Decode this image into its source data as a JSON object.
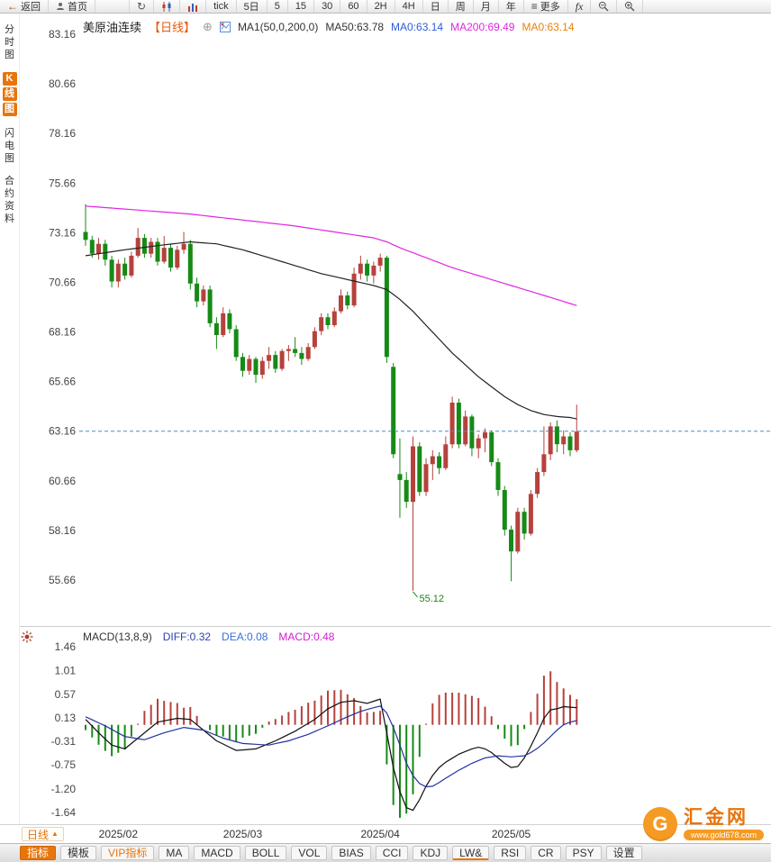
{
  "toolbar": {
    "items": [
      {
        "name": "back-button",
        "icon": "back-arrow",
        "label": "返回"
      },
      {
        "name": "home-button",
        "icon": "person",
        "label": "首页"
      },
      {
        "name": "refresh-button",
        "icon": "refresh",
        "label": ""
      },
      {
        "name": "kline-chart-button",
        "icon": "kline",
        "label": ""
      },
      {
        "name": "timeshare-chart-button",
        "icon": "bars",
        "label": ""
      },
      {
        "name": "tick-button",
        "icon": null,
        "label": "tick"
      },
      {
        "name": "period-5day-button",
        "icon": null,
        "label": "5日"
      },
      {
        "name": "period-5min-button",
        "icon": null,
        "label": "5"
      },
      {
        "name": "period-15min-button",
        "icon": null,
        "label": "15"
      },
      {
        "name": "period-30min-button",
        "icon": null,
        "label": "30"
      },
      {
        "name": "period-60min-button",
        "icon": null,
        "label": "60"
      },
      {
        "name": "period-2h-button",
        "icon": null,
        "label": "2H"
      },
      {
        "name": "period-4h-button",
        "icon": null,
        "label": "4H"
      },
      {
        "name": "period-day-button",
        "icon": null,
        "label": "日"
      },
      {
        "name": "period-week-button",
        "icon": null,
        "label": "周"
      },
      {
        "name": "period-month-button",
        "icon": null,
        "label": "月"
      },
      {
        "name": "period-year-button",
        "icon": null,
        "label": "年"
      },
      {
        "name": "more-button",
        "icon": "menu",
        "label": "更多"
      },
      {
        "name": "fx-button",
        "icon": "fx",
        "label": ""
      },
      {
        "name": "zoom-out-button",
        "icon": "zoom-out",
        "label": ""
      },
      {
        "name": "zoom-in-button",
        "icon": "zoom-in",
        "label": ""
      }
    ]
  },
  "sidebar": {
    "items": [
      {
        "name": "sidebar-item-timeshare",
        "label": "分时图",
        "active": false
      },
      {
        "name": "sidebar-item-kline",
        "label": "K线图",
        "active": true
      },
      {
        "name": "sidebar-item-lightning",
        "label": "闪电图",
        "active": false
      },
      {
        "name": "sidebar-item-contract-info",
        "label": "合约资料",
        "active": false
      }
    ]
  },
  "chart_header": {
    "symbol": "美原油连续",
    "period_tag": "【日线】",
    "period_tag_color": "#e8590c",
    "ma_settings": "MA1(50,0,200,0)",
    "ma_values": [
      {
        "label": "MA50:63.78",
        "color": "#333333"
      },
      {
        "label": "MA0:63.14",
        "color": "#2f5bd8"
      },
      {
        "label": "MA200:69.49",
        "color": "#e026e0"
      },
      {
        "label": "MA0:63.14",
        "color": "#e8820c"
      }
    ]
  },
  "macd_header": {
    "items": [
      {
        "label": "MACD(13,8,9)",
        "color": "#333333"
      },
      {
        "label": "DIFF:0.32",
        "color": "#2b3fae"
      },
      {
        "label": "DEA:0.08",
        "color": "#3a6fd8"
      },
      {
        "label": "MACD:0.48",
        "color": "#d020d0"
      }
    ]
  },
  "chart_data": [
    {
      "type": "candlestick",
      "title": "美原油连续【日线】",
      "y_ticks": [
        83.16,
        80.66,
        78.16,
        75.66,
        73.16,
        70.66,
        68.16,
        65.66,
        63.16,
        60.66,
        58.16,
        55.66
      ],
      "x_labels": [
        {
          "label": "2025/02",
          "index": 5
        },
        {
          "label": "2025/03",
          "index": 24
        },
        {
          "label": "2025/04",
          "index": 45
        },
        {
          "label": "2025/05",
          "index": 65
        }
      ],
      "current_price_line": 63.16,
      "low_annotation": {
        "index": 50,
        "price": 55.12,
        "label": "55.12",
        "color": "#168a16"
      },
      "candles": [
        [
          73.2,
          74.6,
          72.5,
          72.8
        ],
        [
          72.8,
          73.0,
          71.9,
          72.1
        ],
        [
          72.1,
          72.9,
          71.8,
          72.6
        ],
        [
          72.6,
          72.8,
          71.5,
          71.8
        ],
        [
          71.8,
          72.0,
          70.4,
          70.7
        ],
        [
          70.7,
          71.8,
          70.4,
          71.6
        ],
        [
          71.6,
          71.9,
          70.8,
          71.0
        ],
        [
          71.0,
          72.2,
          70.9,
          72.0
        ],
        [
          72.0,
          73.4,
          71.9,
          72.9
        ],
        [
          72.9,
          73.1,
          71.9,
          72.1
        ],
        [
          72.1,
          72.9,
          71.9,
          72.7
        ],
        [
          72.7,
          72.9,
          71.5,
          71.7
        ],
        [
          71.7,
          73.0,
          71.6,
          72.4
        ],
        [
          72.4,
          72.6,
          71.2,
          71.4
        ],
        [
          71.4,
          72.5,
          71.3,
          72.3
        ],
        [
          72.3,
          73.2,
          72.1,
          72.6
        ],
        [
          72.6,
          72.8,
          70.3,
          70.6
        ],
        [
          70.6,
          70.9,
          69.4,
          69.7
        ],
        [
          69.7,
          70.5,
          69.5,
          70.3
        ],
        [
          70.3,
          70.5,
          68.4,
          68.6
        ],
        [
          68.6,
          68.9,
          67.3,
          68.0
        ],
        [
          68.0,
          69.4,
          67.9,
          69.1
        ],
        [
          69.1,
          69.3,
          68.1,
          68.3
        ],
        [
          68.3,
          68.5,
          66.7,
          66.9
        ],
        [
          66.9,
          67.1,
          65.9,
          66.2
        ],
        [
          66.2,
          67.0,
          66.0,
          66.8
        ],
        [
          66.8,
          66.9,
          65.6,
          66.0
        ],
        [
          66.0,
          66.9,
          65.8,
          66.7
        ],
        [
          66.7,
          67.4,
          66.3,
          67.0
        ],
        [
          67.0,
          67.2,
          66.1,
          66.3
        ],
        [
          66.3,
          67.3,
          66.2,
          67.2
        ],
        [
          67.2,
          67.5,
          66.7,
          67.3
        ],
        [
          67.3,
          67.9,
          66.9,
          67.1
        ],
        [
          67.1,
          67.4,
          66.5,
          66.8
        ],
        [
          66.8,
          67.6,
          66.7,
          67.4
        ],
        [
          67.4,
          68.4,
          67.3,
          68.2
        ],
        [
          68.2,
          69.1,
          68.0,
          68.9
        ],
        [
          68.9,
          69.1,
          68.3,
          68.5
        ],
        [
          68.5,
          69.4,
          68.4,
          69.2
        ],
        [
          69.2,
          70.3,
          69.1,
          70.0
        ],
        [
          70.0,
          70.2,
          69.3,
          69.5
        ],
        [
          69.5,
          71.4,
          69.4,
          71.1
        ],
        [
          71.1,
          72.0,
          70.8,
          71.6
        ],
        [
          71.6,
          71.8,
          70.7,
          71.0
        ],
        [
          71.0,
          71.7,
          70.6,
          71.5
        ],
        [
          71.5,
          72.1,
          71.2,
          71.9
        ],
        [
          71.9,
          72.0,
          66.6,
          66.9
        ],
        [
          66.4,
          66.6,
          61.8,
          62.0
        ],
        [
          61.0,
          62.8,
          58.8,
          60.7
        ],
        [
          60.7,
          61.1,
          59.3,
          59.6
        ],
        [
          59.6,
          62.9,
          55.12,
          62.4
        ],
        [
          62.4,
          62.6,
          59.9,
          60.1
        ],
        [
          60.1,
          61.8,
          59.9,
          61.5
        ],
        [
          61.5,
          62.2,
          60.7,
          61.9
        ],
        [
          61.9,
          62.1,
          61.0,
          61.3
        ],
        [
          61.3,
          62.9,
          61.2,
          62.5
        ],
        [
          62.5,
          64.9,
          62.3,
          64.6
        ],
        [
          64.6,
          64.8,
          62.3,
          62.5
        ],
        [
          62.5,
          64.2,
          62.4,
          63.9
        ],
        [
          63.9,
          64.0,
          61.9,
          62.3
        ],
        [
          62.3,
          63.0,
          61.8,
          62.8
        ],
        [
          62.8,
          63.3,
          62.1,
          63.1
        ],
        [
          63.1,
          63.2,
          61.4,
          61.6
        ],
        [
          61.6,
          61.8,
          59.9,
          60.2
        ],
        [
          60.2,
          60.4,
          57.9,
          58.2
        ],
        [
          58.2,
          58.4,
          55.6,
          57.1
        ],
        [
          57.1,
          59.3,
          57.0,
          59.1
        ],
        [
          59.1,
          59.3,
          57.7,
          58.0
        ],
        [
          58.0,
          60.2,
          57.9,
          60.0
        ],
        [
          60.0,
          61.3,
          59.8,
          61.1
        ],
        [
          61.1,
          63.4,
          60.9,
          62.0
        ],
        [
          62.0,
          63.6,
          61.7,
          63.4
        ],
        [
          63.4,
          63.7,
          62.1,
          62.5
        ],
        [
          62.5,
          63.2,
          62.0,
          62.9
        ],
        [
          62.9,
          63.1,
          61.9,
          62.2
        ],
        [
          62.2,
          64.5,
          62.1,
          63.14
        ]
      ],
      "ma50_points": [
        [
          0,
          72.0
        ],
        [
          6,
          72.3
        ],
        [
          12,
          72.55
        ],
        [
          16,
          72.7
        ],
        [
          20,
          72.6
        ],
        [
          24,
          72.3
        ],
        [
          28,
          71.9
        ],
        [
          32,
          71.5
        ],
        [
          36,
          71.1
        ],
        [
          40,
          70.8
        ],
        [
          44,
          70.5
        ],
        [
          46,
          70.3
        ],
        [
          48,
          69.8
        ],
        [
          50,
          69.2
        ],
        [
          52,
          68.5
        ],
        [
          54,
          67.8
        ],
        [
          56,
          67.1
        ],
        [
          58,
          66.5
        ],
        [
          60,
          65.9
        ],
        [
          62,
          65.4
        ],
        [
          64,
          64.9
        ],
        [
          66,
          64.5
        ],
        [
          68,
          64.2
        ],
        [
          70,
          64.0
        ],
        [
          72,
          63.9
        ],
        [
          74,
          63.85
        ],
        [
          75,
          63.78
        ]
      ],
      "ma200_points": [
        [
          0,
          74.5
        ],
        [
          8,
          74.3
        ],
        [
          16,
          74.1
        ],
        [
          24,
          73.8
        ],
        [
          32,
          73.5
        ],
        [
          40,
          73.1
        ],
        [
          44,
          72.9
        ],
        [
          46,
          72.7
        ],
        [
          48,
          72.4
        ],
        [
          52,
          71.9
        ],
        [
          56,
          71.4
        ],
        [
          60,
          71.0
        ],
        [
          64,
          70.6
        ],
        [
          68,
          70.2
        ],
        [
          72,
          69.8
        ],
        [
          75,
          69.49
        ]
      ],
      "colors": {
        "up": "#b5423c",
        "down": "#168a16",
        "ma50": "#222222",
        "ma200": "#e026e0",
        "price_line": "#4a8fc0"
      }
    },
    {
      "type": "macd",
      "y_ticks": [
        1.46,
        1.01,
        0.57,
        0.13,
        -0.31,
        -0.75,
        -1.2,
        -1.64
      ],
      "histogram_rule": "2*(diff-dea)",
      "diff_points": [
        [
          0,
          0.1
        ],
        [
          2,
          -0.15
        ],
        [
          4,
          -0.38
        ],
        [
          6,
          -0.45
        ],
        [
          8,
          -0.25
        ],
        [
          11,
          0.05
        ],
        [
          14,
          0.12
        ],
        [
          16,
          0.1
        ],
        [
          18,
          -0.1
        ],
        [
          20,
          -0.3
        ],
        [
          23,
          -0.48
        ],
        [
          26,
          -0.45
        ],
        [
          29,
          -0.3
        ],
        [
          32,
          -0.12
        ],
        [
          35,
          0.1
        ],
        [
          37,
          0.3
        ],
        [
          39,
          0.42
        ],
        [
          41,
          0.45
        ],
        [
          43,
          0.4
        ],
        [
          45,
          0.48
        ],
        [
          46,
          -0.15
        ],
        [
          47,
          -0.8
        ],
        [
          48,
          -1.25
        ],
        [
          49,
          -1.55
        ],
        [
          50,
          -1.6
        ],
        [
          51,
          -1.4
        ],
        [
          52,
          -1.15
        ],
        [
          53,
          -0.95
        ],
        [
          54,
          -0.8
        ],
        [
          55,
          -0.7
        ],
        [
          57,
          -0.55
        ],
        [
          59,
          -0.45
        ],
        [
          60,
          -0.42
        ],
        [
          61,
          -0.45
        ],
        [
          62,
          -0.52
        ],
        [
          63,
          -0.62
        ],
        [
          64,
          -0.72
        ],
        [
          65,
          -0.8
        ],
        [
          66,
          -0.78
        ],
        [
          67,
          -0.62
        ],
        [
          68,
          -0.4
        ],
        [
          69,
          -0.15
        ],
        [
          70,
          0.12
        ],
        [
          71,
          0.28
        ],
        [
          72,
          0.3
        ],
        [
          73,
          0.34
        ],
        [
          74,
          0.33
        ],
        [
          75,
          0.32
        ]
      ],
      "dea_points": [
        [
          0,
          0.15
        ],
        [
          3,
          -0.02
        ],
        [
          6,
          -0.22
        ],
        [
          9,
          -0.28
        ],
        [
          12,
          -0.15
        ],
        [
          15,
          -0.05
        ],
        [
          18,
          -0.1
        ],
        [
          21,
          -0.25
        ],
        [
          24,
          -0.35
        ],
        [
          28,
          -0.38
        ],
        [
          31,
          -0.3
        ],
        [
          34,
          -0.18
        ],
        [
          37,
          -0.02
        ],
        [
          40,
          0.15
        ],
        [
          42,
          0.25
        ],
        [
          44,
          0.32
        ],
        [
          45,
          0.35
        ],
        [
          46,
          0.22
        ],
        [
          47,
          -0.05
        ],
        [
          48,
          -0.38
        ],
        [
          49,
          -0.72
        ],
        [
          50,
          -0.95
        ],
        [
          51,
          -1.1
        ],
        [
          52,
          -1.16
        ],
        [
          53,
          -1.15
        ],
        [
          54,
          -1.08
        ],
        [
          55,
          -1.0
        ],
        [
          57,
          -0.85
        ],
        [
          59,
          -0.72
        ],
        [
          61,
          -0.62
        ],
        [
          63,
          -0.58
        ],
        [
          65,
          -0.6
        ],
        [
          67,
          -0.58
        ],
        [
          68,
          -0.52
        ],
        [
          69,
          -0.44
        ],
        [
          70,
          -0.34
        ],
        [
          71,
          -0.22
        ],
        [
          72,
          -0.1
        ],
        [
          73,
          0.0
        ],
        [
          74,
          0.05
        ],
        [
          75,
          0.08
        ]
      ],
      "colors": {
        "diff": "#101010",
        "dea": "#2233a0",
        "hist_up": "#b5423c",
        "hist_down": "#168a16"
      }
    }
  ],
  "bottom": {
    "period_label": "日线",
    "tabs": [
      {
        "name": "tab-indicator",
        "label": "指标",
        "variant": "primary"
      },
      {
        "name": "tab-template",
        "label": "模板",
        "variant": "boxed"
      },
      {
        "name": "tab-vip-indicator",
        "label": "VIP指标",
        "variant": "vip"
      },
      {
        "name": "tab-ma",
        "label": "MA",
        "variant": "boxed"
      },
      {
        "name": "tab-macd",
        "label": "MACD",
        "variant": "boxed"
      },
      {
        "name": "tab-boll",
        "label": "BOLL",
        "variant": "boxed"
      },
      {
        "name": "tab-vol",
        "label": "VOL",
        "variant": "boxed"
      },
      {
        "name": "tab-bias",
        "label": "BIAS",
        "variant": "boxed"
      },
      {
        "name": "tab-cci",
        "label": "CCI",
        "variant": "boxed"
      },
      {
        "name": "tab-kdj",
        "label": "KDJ",
        "variant": "boxed"
      },
      {
        "name": "tab-lwr",
        "label": "LW&",
        "variant": "boxed underlined"
      },
      {
        "name": "tab-rsi",
        "label": "RSI",
        "variant": "boxed"
      },
      {
        "name": "tab-cr",
        "label": "CR",
        "variant": "boxed"
      },
      {
        "name": "tab-psy",
        "label": "PSY",
        "variant": "boxed"
      },
      {
        "name": "tab-settings",
        "label": "设置",
        "variant": "boxed"
      }
    ]
  },
  "logo": {
    "circle_letter": "G",
    "name": "汇金网",
    "url": "www.gold678.com"
  }
}
